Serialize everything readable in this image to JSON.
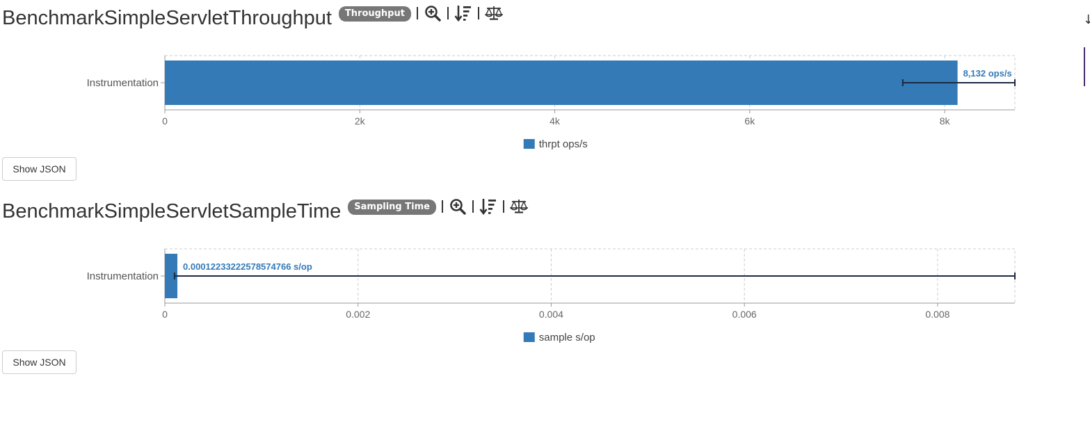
{
  "edge": {
    "arrow": "↓"
  },
  "charts": [
    {
      "title": "BenchmarkSimpleServletThroughput",
      "badge": "Throughput",
      "show_json_label": "Show JSON",
      "icons": [
        "zoom-in-icon",
        "sort-descending-icon",
        "balance-scale-icon"
      ]
    },
    {
      "title": "BenchmarkSimpleServletSampleTime",
      "badge": "Sampling Time",
      "show_json_label": "Show JSON",
      "icons": [
        "zoom-in-icon",
        "sort-descending-icon",
        "balance-scale-icon"
      ]
    }
  ],
  "colors": {
    "bar": "#337ab7",
    "error": "#1b2a41",
    "label": "#337ab7",
    "grid": "#cccccc"
  },
  "chart_data": [
    {
      "type": "bar",
      "orientation": "horizontal",
      "categories": [
        "Instrumentation"
      ],
      "series": [
        {
          "name": "thrpt ops/s",
          "values": [
            8132
          ]
        }
      ],
      "error": [
        [
          7570,
          8720
        ]
      ],
      "data_labels": [
        "8,132 ops/s"
      ],
      "xlim": [
        0,
        8720
      ],
      "xticks": [
        0,
        2000,
        4000,
        6000,
        8000
      ],
      "xtick_labels": [
        "0",
        "2k",
        "4k",
        "6k",
        "8k"
      ],
      "legend": "bottom",
      "grid": true
    },
    {
      "type": "bar",
      "orientation": "horizontal",
      "categories": [
        "Instrumentation"
      ],
      "series": [
        {
          "name": "sample s/op",
          "values": [
            0.00012233222578574766
          ]
        }
      ],
      "error": [
        [
          0.0001,
          0.0088
        ]
      ],
      "data_labels": [
        "0.00012233222578574766 s/op"
      ],
      "xlim": [
        0,
        0.0088
      ],
      "xticks": [
        0,
        0.002,
        0.004,
        0.006,
        0.008
      ],
      "xtick_labels": [
        "0",
        "0.002",
        "0.004",
        "0.006",
        "0.008"
      ],
      "legend": "bottom",
      "grid": true
    }
  ]
}
